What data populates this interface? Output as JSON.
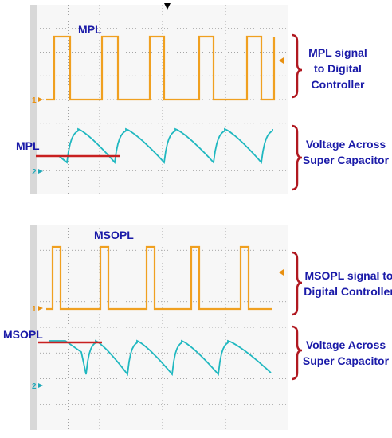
{
  "panels": [
    {
      "id": "mpl",
      "signal_title": "MPL",
      "pointer_label": "MPL",
      "top_callout": [
        "MPL  signal",
        "to Digital",
        "Controller"
      ],
      "bottom_callout": [
        "Voltage Across",
        "Super Capacitor"
      ],
      "ch1_marker": "1",
      "ch2_marker": "2"
    },
    {
      "id": "msopl",
      "signal_title": "MSOPL",
      "pointer_label": "MSOPL",
      "top_callout": [
        "MSOPL signal to",
        "Digital Controller"
      ],
      "bottom_callout": [
        "Voltage Across",
        "Super Capacitor"
      ],
      "ch1_marker": "1",
      "ch2_marker": "2"
    }
  ],
  "colors": {
    "grid_bg": "#f7f7f7",
    "grid_line": "#8a8a8a",
    "pulse": "#f0a020",
    "capacitor": "#20b8c0",
    "pointer": "#c82020",
    "bracket": "#b01820",
    "label_text": "#1a1aa8",
    "ch1_marker": "#e89010",
    "ch2_marker": "#20a8b8",
    "trigger_marker": "#e89010"
  }
}
